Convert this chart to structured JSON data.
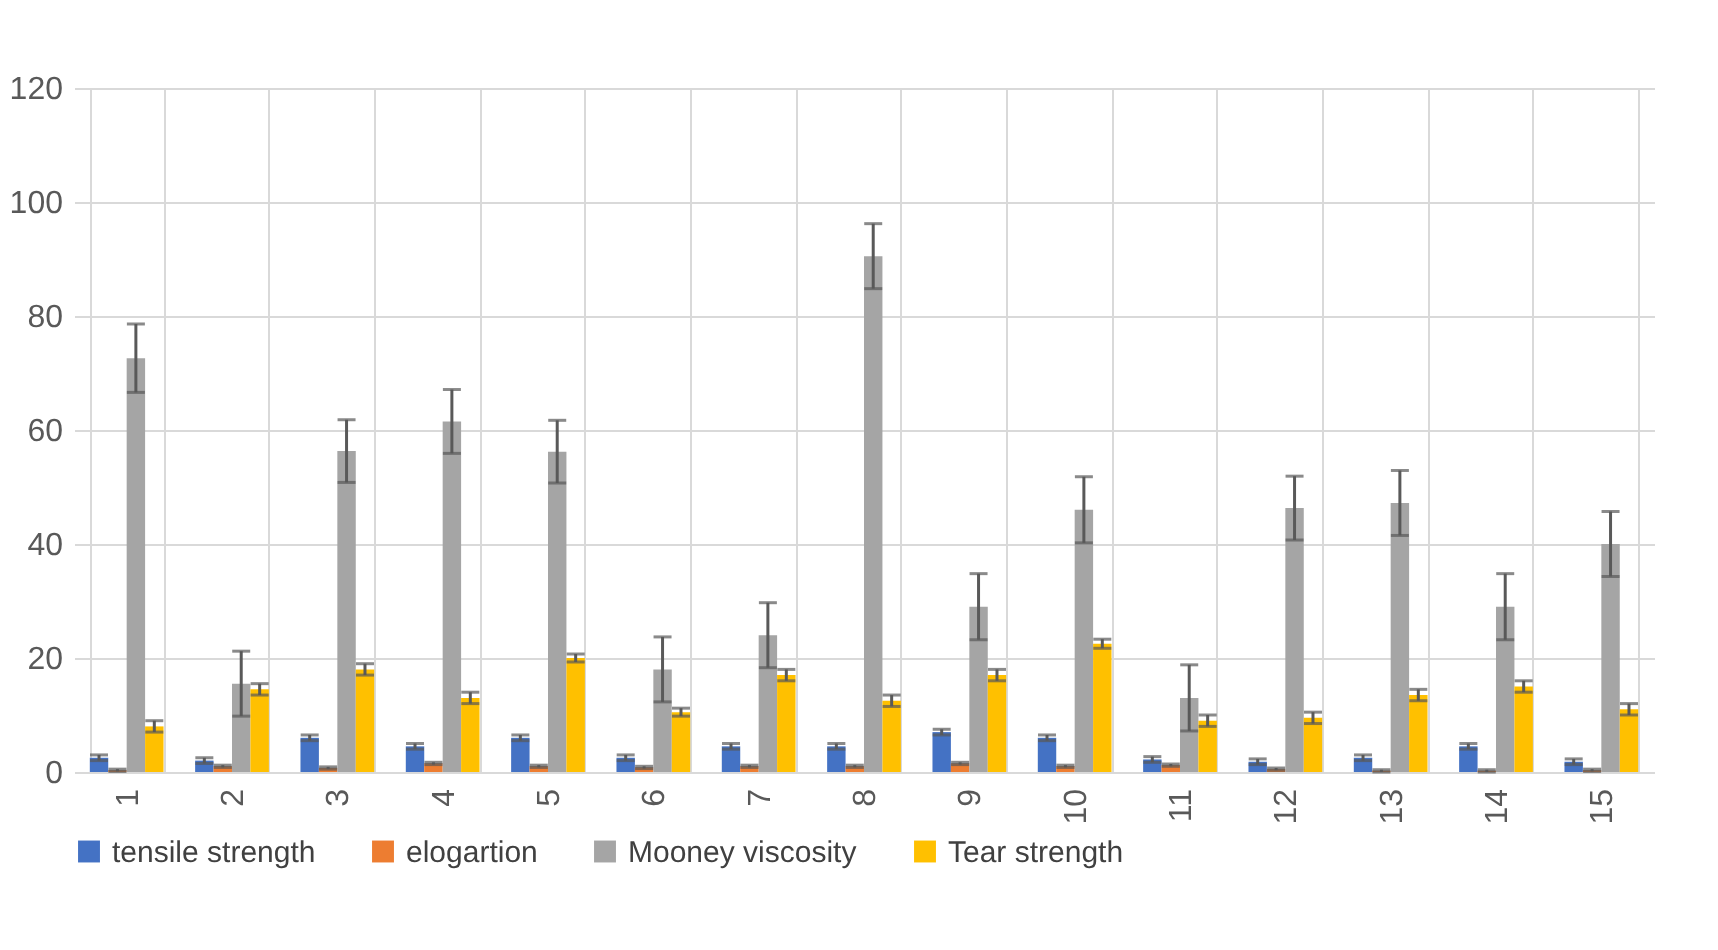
{
  "chart_data": {
    "type": "bar",
    "categories": [
      "1",
      "2",
      "3",
      "4",
      "5",
      "6",
      "7",
      "8",
      "9",
      "10",
      "11",
      "12",
      "13",
      "14",
      "15"
    ],
    "series": [
      {
        "name": "tensile strength",
        "color": "#4472c4",
        "values": [
          2.5,
          2,
          6,
          4.5,
          6,
          2.5,
          4.5,
          4.5,
          7,
          6,
          2.2,
          1.8,
          2.5,
          4.5,
          1.8
        ],
        "errors": [
          0.5,
          0.5,
          0.5,
          0.5,
          0.5,
          0.5,
          0.5,
          0.5,
          0.5,
          0.5,
          0.5,
          0.5,
          0.5,
          0.5,
          0.5
        ]
      },
      {
        "name": "elogartion",
        "color": "#ed7d31",
        "values": [
          0.3,
          1,
          0.7,
          1.5,
          1,
          0.8,
          1,
          1,
          1.5,
          1,
          1.2,
          0.5,
          0.2,
          0.2,
          0.3
        ],
        "errors": [
          0.2,
          0.2,
          0.2,
          0.2,
          0.2,
          0.2,
          0.2,
          0.2,
          0.2,
          0.2,
          0.2,
          0.2,
          0.2,
          0.2,
          0.2
        ]
      },
      {
        "name": "Mooney viscosity",
        "color": "#a5a5a5",
        "values": [
          72.6,
          15.5,
          56.3,
          61.5,
          56.2,
          18,
          24,
          90.5,
          29,
          46,
          13,
          46.3,
          47.2,
          29,
          40
        ],
        "errors": [
          6,
          5.7,
          5.5,
          5.6,
          5.5,
          5.7,
          5.7,
          5.7,
          5.8,
          5.8,
          5.8,
          5.6,
          5.7,
          5.8,
          5.7
        ]
      },
      {
        "name": "Tear strength",
        "color": "#ffc000",
        "values": [
          8,
          14.5,
          18,
          13,
          20,
          10.5,
          17,
          12.5,
          17,
          22.5,
          9,
          9.5,
          13.5,
          15,
          11
        ],
        "errors": [
          1,
          1,
          1,
          1,
          0.7,
          0.7,
          1,
          1,
          1,
          0.8,
          1,
          1,
          1,
          1,
          1
        ]
      }
    ],
    "ylim": [
      0,
      120
    ],
    "yticks": [
      0,
      20,
      40,
      60,
      80,
      100,
      120
    ],
    "grid": true,
    "legend": "bottom"
  }
}
